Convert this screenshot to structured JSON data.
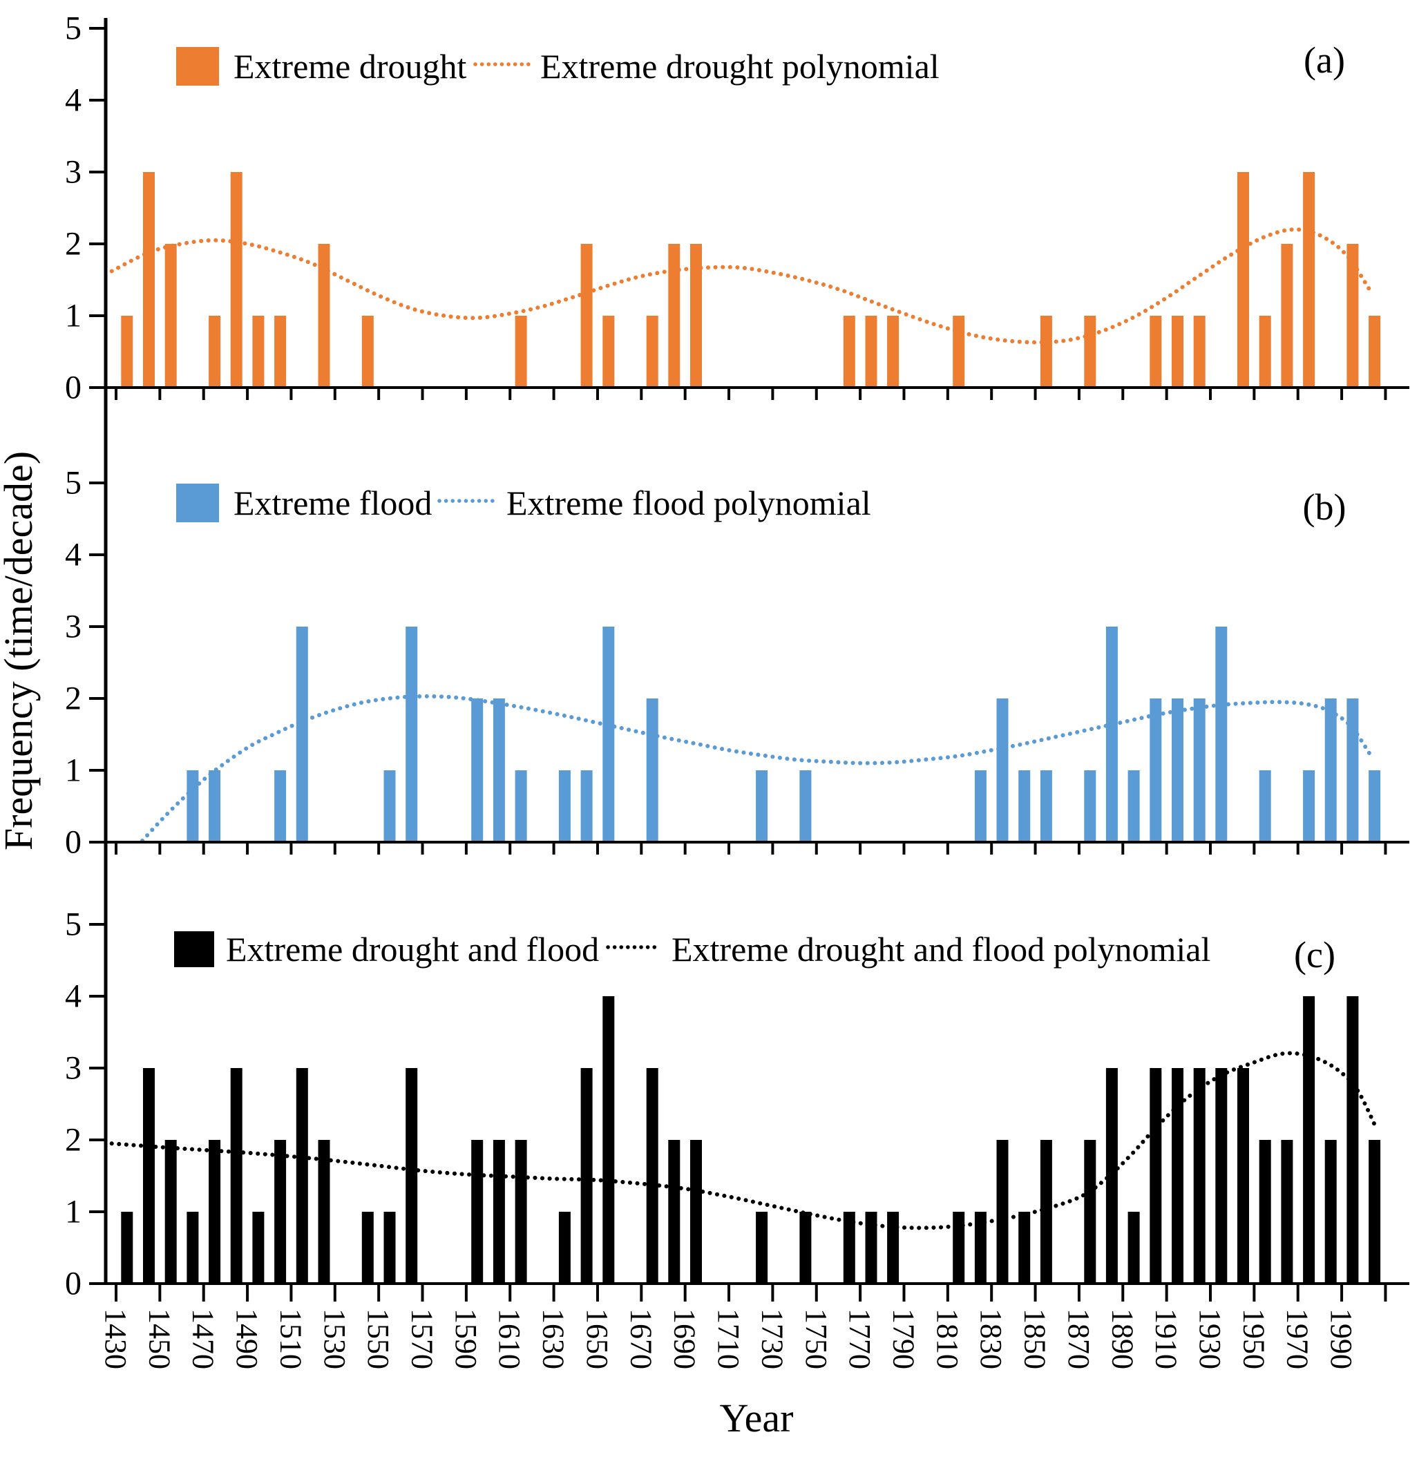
{
  "figure": {
    "xlabel": "Year",
    "ylabel": "Frequency (time/decade)",
    "panel_letters": [
      "(a)",
      "(b)",
      "(c)"
    ],
    "colors": {
      "drought": "#ED7D31",
      "flood": "#5B9BD5",
      "combined": "#000000",
      "axis": "#000000",
      "background": "#ffffff"
    },
    "x_axis": {
      "tick_start": 1430,
      "tick_step": 20,
      "tick_end": 2010,
      "labels": [
        "1430",
        "1450",
        "1470",
        "1490",
        "1510",
        "1530",
        "1550",
        "1570",
        "1590",
        "1610",
        "1630",
        "1650",
        "1670",
        "1690",
        "1710",
        "1730",
        "1750",
        "1770",
        "1790",
        "1810",
        "1830",
        "1850",
        "1870",
        "1890",
        "1910",
        "1930",
        "1950",
        "1970",
        "1990"
      ]
    },
    "y_axis": {
      "ticks": [
        0,
        1,
        2,
        3,
        4,
        5
      ],
      "labels": [
        "0",
        "1",
        "2",
        "3",
        "4",
        "5"
      ],
      "range": [
        0,
        5
      ]
    }
  },
  "chart_data": [
    {
      "type": "bar",
      "panel": "a",
      "legend": [
        "Extreme drought",
        "Extreme drought polynomial"
      ],
      "series_name": "Extreme drought",
      "color": "#ED7D31",
      "ylim": [
        0,
        5
      ],
      "categories": [
        1430,
        1440,
        1450,
        1460,
        1470,
        1480,
        1490,
        1500,
        1510,
        1520,
        1530,
        1540,
        1550,
        1560,
        1570,
        1580,
        1590,
        1600,
        1610,
        1620,
        1630,
        1640,
        1650,
        1660,
        1670,
        1680,
        1690,
        1700,
        1710,
        1720,
        1730,
        1740,
        1750,
        1760,
        1770,
        1780,
        1790,
        1800,
        1810,
        1820,
        1830,
        1840,
        1850,
        1860,
        1870,
        1880,
        1890,
        1900,
        1910,
        1920,
        1930,
        1940,
        1950,
        1960,
        1970,
        1980,
        1990,
        2000
      ],
      "values": [
        1,
        3,
        2,
        0,
        1,
        3,
        1,
        1,
        0,
        2,
        0,
        1,
        0,
        0,
        0,
        0,
        0,
        0,
        1,
        0,
        0,
        2,
        1,
        0,
        1,
        2,
        2,
        0,
        0,
        0,
        0,
        0,
        0,
        1,
        1,
        1,
        0,
        0,
        1,
        0,
        0,
        0,
        1,
        0,
        1,
        0,
        0,
        1,
        1,
        1,
        0,
        3,
        1,
        2,
        3,
        0,
        2,
        1
      ],
      "trend": [
        [
          1428,
          1.62
        ],
        [
          1445,
          1.88
        ],
        [
          1460,
          2.0
        ],
        [
          1475,
          2.05
        ],
        [
          1490,
          2.0
        ],
        [
          1505,
          1.88
        ],
        [
          1520,
          1.72
        ],
        [
          1535,
          1.5
        ],
        [
          1550,
          1.28
        ],
        [
          1565,
          1.1
        ],
        [
          1580,
          1.0
        ],
        [
          1595,
          0.97
        ],
        [
          1610,
          1.03
        ],
        [
          1625,
          1.13
        ],
        [
          1640,
          1.27
        ],
        [
          1655,
          1.42
        ],
        [
          1670,
          1.55
        ],
        [
          1685,
          1.63
        ],
        [
          1700,
          1.67
        ],
        [
          1715,
          1.67
        ],
        [
          1730,
          1.6
        ],
        [
          1745,
          1.5
        ],
        [
          1760,
          1.37
        ],
        [
          1775,
          1.2
        ],
        [
          1790,
          1.03
        ],
        [
          1805,
          0.87
        ],
        [
          1820,
          0.74
        ],
        [
          1835,
          0.66
        ],
        [
          1850,
          0.63
        ],
        [
          1865,
          0.66
        ],
        [
          1880,
          0.78
        ],
        [
          1895,
          0.98
        ],
        [
          1910,
          1.25
        ],
        [
          1925,
          1.56
        ],
        [
          1940,
          1.86
        ],
        [
          1955,
          2.1
        ],
        [
          1968,
          2.2
        ],
        [
          1980,
          2.12
        ],
        [
          1992,
          1.85
        ],
        [
          2003,
          1.35
        ]
      ]
    },
    {
      "type": "bar",
      "panel": "b",
      "legend": [
        "Extreme flood",
        "Extreme flood polynomial"
      ],
      "series_name": "Extreme flood",
      "color": "#5B9BD5",
      "ylim": [
        0,
        5
      ],
      "categories": [
        1430,
        1440,
        1450,
        1460,
        1470,
        1480,
        1490,
        1500,
        1510,
        1520,
        1530,
        1540,
        1550,
        1560,
        1570,
        1580,
        1590,
        1600,
        1610,
        1620,
        1630,
        1640,
        1650,
        1660,
        1670,
        1680,
        1690,
        1700,
        1710,
        1720,
        1730,
        1740,
        1750,
        1760,
        1770,
        1780,
        1790,
        1800,
        1810,
        1820,
        1830,
        1840,
        1850,
        1860,
        1870,
        1880,
        1890,
        1900,
        1910,
        1920,
        1930,
        1940,
        1950,
        1960,
        1970,
        1980,
        1990,
        2000
      ],
      "values": [
        0,
        0,
        0,
        1,
        1,
        0,
        0,
        1,
        3,
        0,
        0,
        0,
        1,
        3,
        0,
        0,
        2,
        2,
        1,
        0,
        1,
        1,
        3,
        0,
        2,
        0,
        0,
        0,
        0,
        1,
        0,
        1,
        0,
        0,
        0,
        0,
        0,
        0,
        0,
        1,
        2,
        1,
        1,
        0,
        1,
        3,
        1,
        2,
        2,
        2,
        3,
        0,
        1,
        0,
        1,
        2,
        2,
        1
      ],
      "trend": [
        [
          1442,
          0.02
        ],
        [
          1452,
          0.35
        ],
        [
          1462,
          0.65
        ],
        [
          1472,
          0.92
        ],
        [
          1482,
          1.15
        ],
        [
          1492,
          1.35
        ],
        [
          1502,
          1.5
        ],
        [
          1512,
          1.64
        ],
        [
          1522,
          1.76
        ],
        [
          1532,
          1.86
        ],
        [
          1542,
          1.94
        ],
        [
          1552,
          1.99
        ],
        [
          1562,
          2.02
        ],
        [
          1572,
          2.03
        ],
        [
          1582,
          2.02
        ],
        [
          1592,
          1.99
        ],
        [
          1605,
          1.93
        ],
        [
          1620,
          1.85
        ],
        [
          1635,
          1.76
        ],
        [
          1650,
          1.66
        ],
        [
          1665,
          1.56
        ],
        [
          1680,
          1.46
        ],
        [
          1695,
          1.37
        ],
        [
          1710,
          1.28
        ],
        [
          1725,
          1.21
        ],
        [
          1740,
          1.15
        ],
        [
          1755,
          1.12
        ],
        [
          1770,
          1.1
        ],
        [
          1785,
          1.11
        ],
        [
          1800,
          1.15
        ],
        [
          1815,
          1.2
        ],
        [
          1830,
          1.28
        ],
        [
          1845,
          1.37
        ],
        [
          1860,
          1.47
        ],
        [
          1875,
          1.57
        ],
        [
          1890,
          1.67
        ],
        [
          1905,
          1.77
        ],
        [
          1920,
          1.85
        ],
        [
          1935,
          1.91
        ],
        [
          1950,
          1.94
        ],
        [
          1962,
          1.95
        ],
        [
          1974,
          1.92
        ],
        [
          1984,
          1.83
        ],
        [
          1994,
          1.62
        ],
        [
          2003,
          1.22
        ]
      ]
    },
    {
      "type": "bar",
      "panel": "c",
      "legend": [
        "Extreme drought and flood",
        "Extreme drought and flood polynomial"
      ],
      "series_name": "Extreme drought and flood",
      "color": "#000000",
      "ylim": [
        0,
        5
      ],
      "categories": [
        1430,
        1440,
        1450,
        1460,
        1470,
        1480,
        1490,
        1500,
        1510,
        1520,
        1530,
        1540,
        1550,
        1560,
        1570,
        1580,
        1590,
        1600,
        1610,
        1620,
        1630,
        1640,
        1650,
        1660,
        1670,
        1680,
        1690,
        1700,
        1710,
        1720,
        1730,
        1740,
        1750,
        1760,
        1770,
        1780,
        1790,
        1800,
        1810,
        1820,
        1830,
        1840,
        1850,
        1860,
        1870,
        1880,
        1890,
        1900,
        1910,
        1920,
        1930,
        1940,
        1950,
        1960,
        1970,
        1980,
        1990,
        2000
      ],
      "values": [
        1,
        3,
        2,
        1,
        2,
        3,
        1,
        2,
        3,
        2,
        0,
        1,
        1,
        3,
        0,
        0,
        2,
        2,
        2,
        0,
        1,
        3,
        4,
        0,
        3,
        2,
        2,
        0,
        0,
        1,
        0,
        1,
        0,
        1,
        1,
        1,
        0,
        0,
        1,
        1,
        2,
        1,
        2,
        0,
        2,
        3,
        1,
        3,
        3,
        3,
        3,
        3,
        2,
        2,
        4,
        2,
        4,
        2
      ],
      "trend": [
        [
          1428,
          1.95
        ],
        [
          1450,
          1.9
        ],
        [
          1470,
          1.86
        ],
        [
          1490,
          1.82
        ],
        [
          1510,
          1.77
        ],
        [
          1530,
          1.71
        ],
        [
          1550,
          1.64
        ],
        [
          1570,
          1.57
        ],
        [
          1590,
          1.52
        ],
        [
          1610,
          1.49
        ],
        [
          1630,
          1.46
        ],
        [
          1650,
          1.44
        ],
        [
          1670,
          1.39
        ],
        [
          1690,
          1.32
        ],
        [
          1710,
          1.21
        ],
        [
          1730,
          1.08
        ],
        [
          1750,
          0.95
        ],
        [
          1770,
          0.84
        ],
        [
          1790,
          0.78
        ],
        [
          1810,
          0.79
        ],
        [
          1830,
          0.87
        ],
        [
          1850,
          1.0
        ],
        [
          1870,
          1.2
        ],
        [
          1882,
          1.45
        ],
        [
          1894,
          1.8
        ],
        [
          1906,
          2.2
        ],
        [
          1920,
          2.6
        ],
        [
          1935,
          2.9
        ],
        [
          1950,
          3.08
        ],
        [
          1963,
          3.2
        ],
        [
          1975,
          3.17
        ],
        [
          1987,
          3.0
        ],
        [
          1997,
          2.7
        ],
        [
          2006,
          2.15
        ]
      ]
    }
  ]
}
